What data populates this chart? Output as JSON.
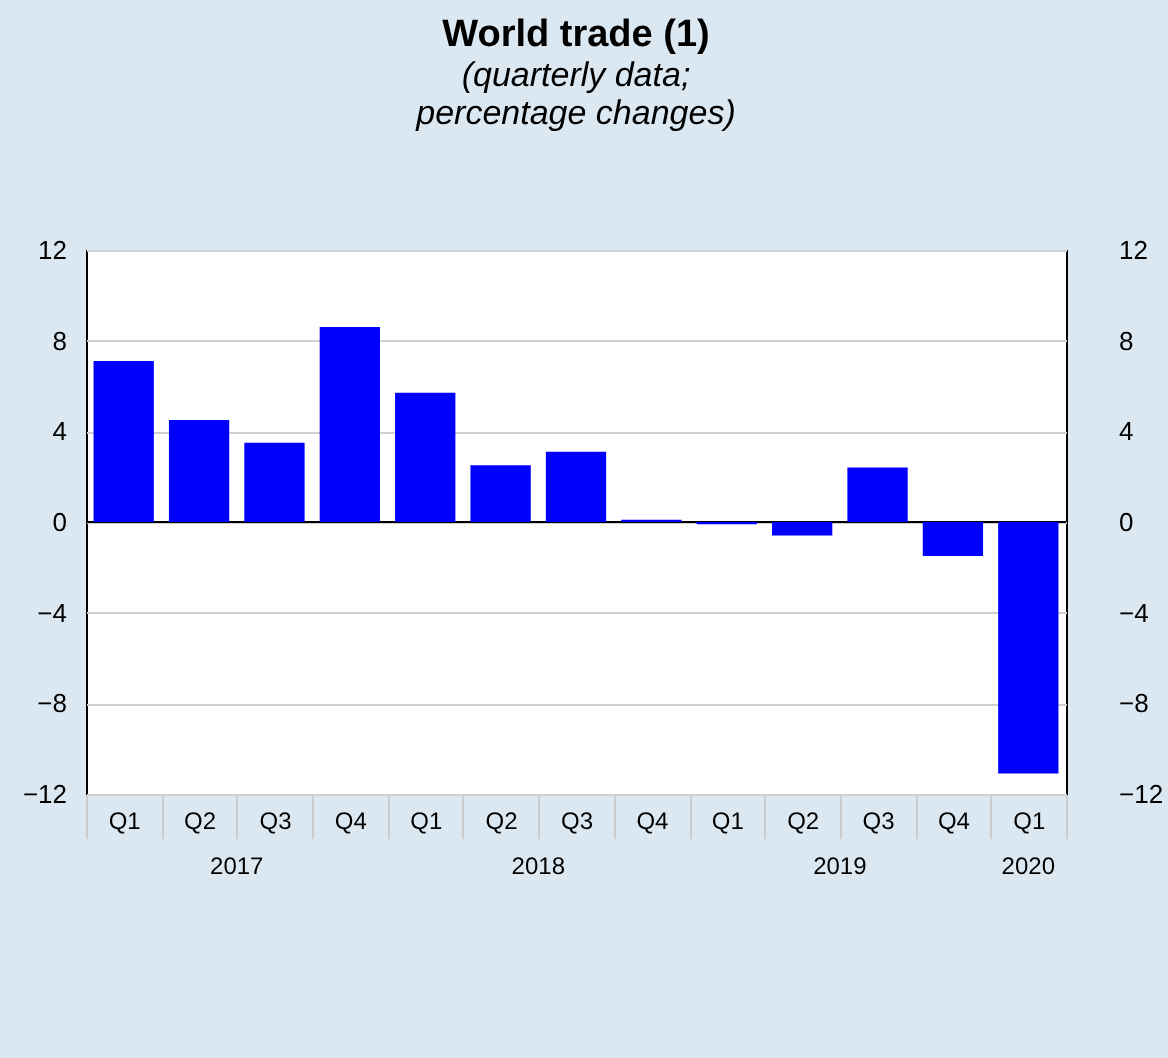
{
  "chart_data": {
    "type": "bar",
    "title": "World trade (1)",
    "subtitle": [
      "(quarterly data;",
      "percentage changes)"
    ],
    "categories": [
      "Q1",
      "Q2",
      "Q3",
      "Q4",
      "Q1",
      "Q2",
      "Q3",
      "Q4",
      "Q1",
      "Q2",
      "Q3",
      "Q4",
      "Q1"
    ],
    "values": [
      7.1,
      4.5,
      3.5,
      8.6,
      5.7,
      2.5,
      3.1,
      0.1,
      -0.1,
      -0.6,
      2.4,
      -1.5,
      -11.1
    ],
    "color": "#0000ff",
    "ylim": [
      -12,
      12
    ],
    "yticks": [
      -12,
      -8,
      -4,
      0,
      4,
      8,
      12
    ],
    "y2lim": [
      -12,
      12
    ],
    "y2ticks": [
      -12,
      -8,
      -4,
      0,
      4,
      8,
      12
    ],
    "grid": "y",
    "annotations": [
      "2017",
      "2018",
      "2019",
      "2020"
    ]
  }
}
